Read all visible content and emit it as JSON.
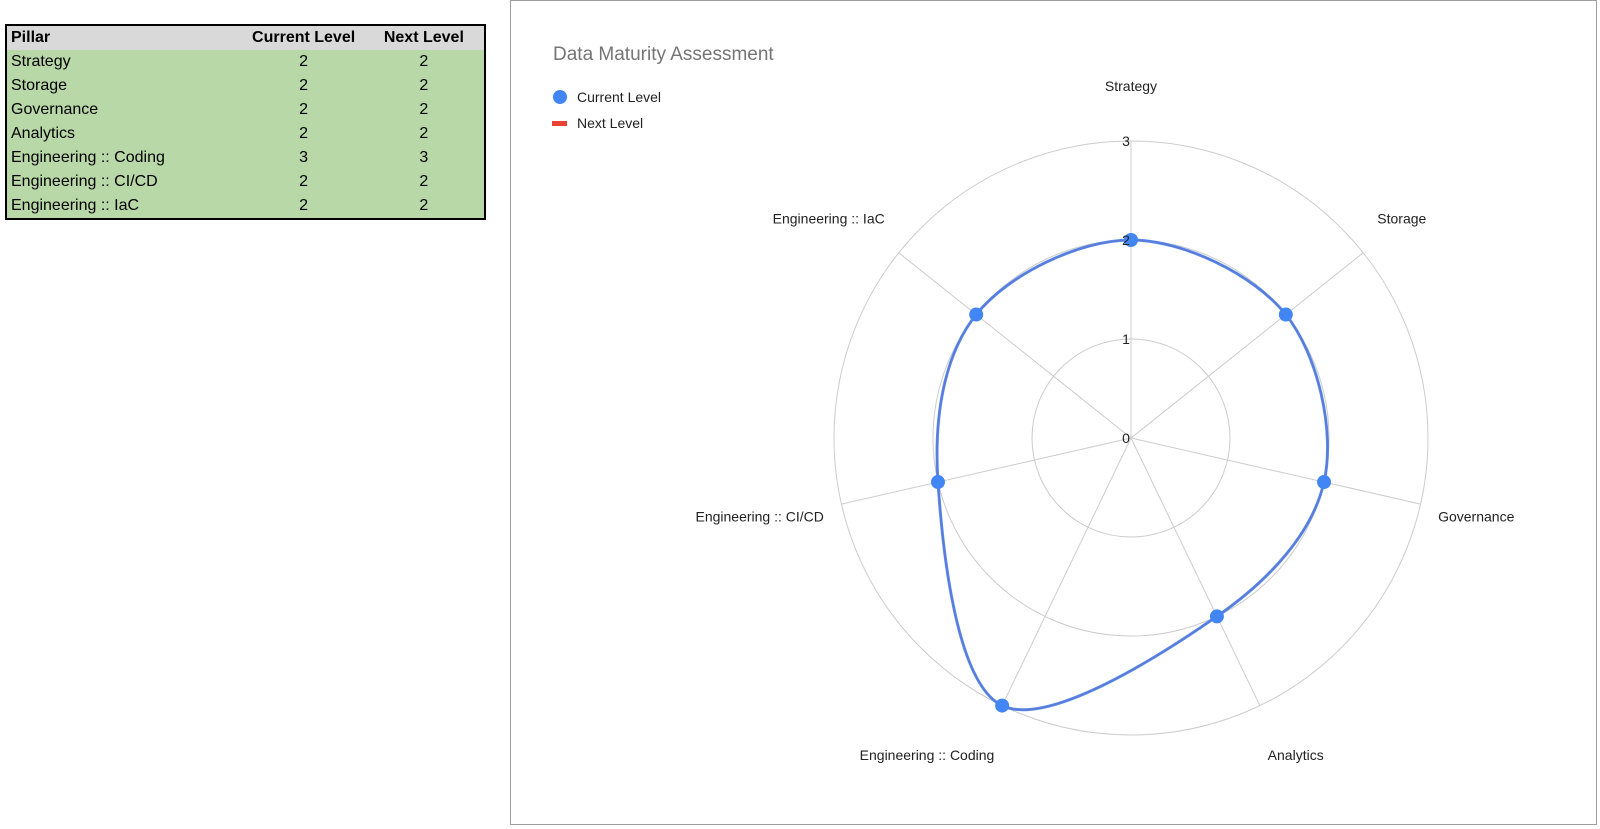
{
  "table": {
    "headers": [
      "Pillar",
      "Current Level",
      "Next Level"
    ],
    "rows": [
      [
        "Strategy",
        "2",
        "2"
      ],
      [
        "Storage",
        "2",
        "2"
      ],
      [
        "Governance",
        "2",
        "2"
      ],
      [
        "Analytics",
        "2",
        "2"
      ],
      [
        "Engineering :: Coding",
        "3",
        "3"
      ],
      [
        "Engineering :: CI/CD",
        "2",
        "2"
      ],
      [
        "Engineering :: IaC",
        "2",
        "2"
      ]
    ]
  },
  "chart_data": {
    "type": "radar",
    "title": "Data Maturity Assessment",
    "categories": [
      "Strategy",
      "Storage",
      "Governance",
      "Analytics",
      "Engineering :: Coding",
      "Engineering :: CI/CD",
      "Engineering :: IaC"
    ],
    "series": [
      {
        "name": "Current Level",
        "values": [
          2,
          2,
          2,
          2,
          3,
          2,
          2
        ],
        "color": "#4285f4",
        "marker": "circle"
      },
      {
        "name": "Next Level",
        "values": [
          2,
          2,
          2,
          2,
          3,
          2,
          2
        ],
        "color": "#ea4335",
        "marker": "line"
      }
    ],
    "rlim": [
      0,
      3
    ],
    "ticks": [
      "0",
      "1",
      "2",
      "3"
    ],
    "legend_position": "top-left",
    "grid": true
  }
}
